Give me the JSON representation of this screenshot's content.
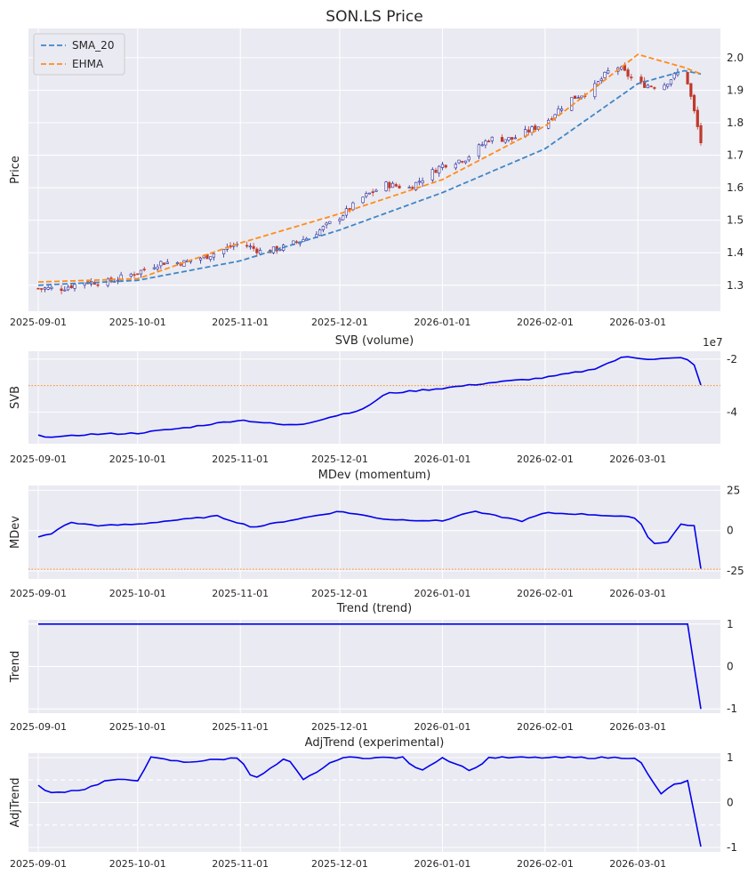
{
  "figure_title": "SON.LS Price",
  "colors": {
    "sma": "#3f86c6",
    "ehma": "#ff8c1a",
    "indicator": "#0000ee",
    "threshold": "#ff8c1a",
    "candle_up": "#2a2a9a",
    "candle_down": "#c0392b"
  },
  "x_tick_labels": [
    "2025-09-01",
    "2025-10-01",
    "2025-11-01",
    "2025-12-01",
    "2026-01-01",
    "2026-02-01",
    "2026-03-01"
  ],
  "chart_data": [
    {
      "type": "candlestick",
      "title": "SON.LS Price",
      "ylabel": "Price",
      "ylim": [
        1.22,
        2.09
      ],
      "yticks": [
        "1.3",
        "1.4",
        "1.5",
        "1.6",
        "1.7",
        "1.8",
        "1.9",
        "2.0"
      ],
      "legend": [
        "SMA_20",
        "EHMA"
      ],
      "x_range": [
        "2025-09-01",
        "2026-03-20"
      ],
      "note": "Daily candlesticks with SMA_20 (blue dashed) and EHMA (orange dashed) overlays",
      "close_anchors": [
        [
          "2025-09-01",
          1.29
        ],
        [
          "2025-09-08",
          1.29
        ],
        [
          "2025-09-15",
          1.31
        ],
        [
          "2025-09-22",
          1.31
        ],
        [
          "2025-10-01",
          1.34
        ],
        [
          "2025-10-08",
          1.37
        ],
        [
          "2025-10-15",
          1.37
        ],
        [
          "2025-10-22",
          1.39
        ],
        [
          "2025-11-01",
          1.43
        ],
        [
          "2025-11-08",
          1.4
        ],
        [
          "2025-11-15",
          1.42
        ],
        [
          "2025-11-22",
          1.45
        ],
        [
          "2025-12-01",
          1.51
        ],
        [
          "2025-12-08",
          1.57
        ],
        [
          "2025-12-15",
          1.61
        ],
        [
          "2025-12-22",
          1.6
        ],
        [
          "2026-01-01",
          1.67
        ],
        [
          "2026-01-08",
          1.69
        ],
        [
          "2026-01-15",
          1.75
        ],
        [
          "2026-01-22",
          1.75
        ],
        [
          "2026-02-01",
          1.8
        ],
        [
          "2026-02-08",
          1.87
        ],
        [
          "2026-02-15",
          1.9
        ],
        [
          "2026-02-22",
          1.98
        ],
        [
          "2026-03-01",
          1.92
        ],
        [
          "2026-03-08",
          1.91
        ],
        [
          "2026-03-15",
          1.97
        ],
        [
          "2026-03-20",
          1.74
        ]
      ],
      "sma_20_anchors": [
        [
          "2025-09-01",
          1.3
        ],
        [
          "2025-10-01",
          1.315
        ],
        [
          "2025-11-01",
          1.375
        ],
        [
          "2025-12-01",
          1.47
        ],
        [
          "2026-01-01",
          1.585
        ],
        [
          "2026-02-01",
          1.72
        ],
        [
          "2026-03-01",
          1.92
        ],
        [
          "2026-03-15",
          1.96
        ],
        [
          "2026-03-20",
          1.95
        ]
      ],
      "ehma_anchors": [
        [
          "2025-09-01",
          1.31
        ],
        [
          "2025-10-01",
          1.32
        ],
        [
          "2025-11-01",
          1.43
        ],
        [
          "2025-12-01",
          1.52
        ],
        [
          "2026-01-01",
          1.625
        ],
        [
          "2026-02-01",
          1.79
        ],
        [
          "2026-03-01",
          2.01
        ],
        [
          "2026-03-15",
          1.97
        ],
        [
          "2026-03-20",
          1.95
        ]
      ]
    },
    {
      "type": "line",
      "title": "SVB (volume)",
      "ylabel": "SVB",
      "offset_label": "1e7",
      "ylim": [
        -5.2,
        -1.7
      ],
      "yticks": [
        "-2",
        "-4"
      ],
      "threshold": -3.0,
      "anchors": [
        [
          "2025-09-01",
          -4.9
        ],
        [
          "2025-09-08",
          -4.95
        ],
        [
          "2025-09-15",
          -4.85
        ],
        [
          "2025-10-01",
          -4.8
        ],
        [
          "2025-10-15",
          -4.6
        ],
        [
          "2025-11-01",
          -4.3
        ],
        [
          "2025-11-15",
          -4.5
        ],
        [
          "2025-11-20",
          -4.45
        ],
        [
          "2025-12-01",
          -4.1
        ],
        [
          "2025-12-08",
          -3.9
        ],
        [
          "2025-12-15",
          -3.3
        ],
        [
          "2026-01-01",
          -3.1
        ],
        [
          "2026-01-15",
          -2.9
        ],
        [
          "2026-02-01",
          -2.7
        ],
        [
          "2026-02-15",
          -2.4
        ],
        [
          "2026-02-25",
          -1.9
        ],
        [
          "2026-03-05",
          -2.0
        ],
        [
          "2026-03-15",
          -1.95
        ],
        [
          "2026-03-18",
          -2.2
        ],
        [
          "2026-03-20",
          -3.0
        ]
      ]
    },
    {
      "type": "line",
      "title": "MDev (momentum)",
      "ylabel": "MDev",
      "ylim": [
        -30,
        28
      ],
      "yticks": [
        "25",
        "0",
        "-25"
      ],
      "threshold": -24,
      "anchors": [
        [
          "2025-09-01",
          -4
        ],
        [
          "2025-09-05",
          -2
        ],
        [
          "2025-09-10",
          5
        ],
        [
          "2025-09-20",
          3
        ],
        [
          "2025-10-01",
          4
        ],
        [
          "2025-10-10",
          6
        ],
        [
          "2025-10-25",
          9
        ],
        [
          "2025-11-05",
          2
        ],
        [
          "2025-11-15",
          6
        ],
        [
          "2025-12-01",
          12
        ],
        [
          "2025-12-15",
          7
        ],
        [
          "2026-01-01",
          6
        ],
        [
          "2026-01-10",
          12
        ],
        [
          "2026-01-25",
          6
        ],
        [
          "2026-02-01",
          11
        ],
        [
          "2026-02-15",
          10
        ],
        [
          "2026-03-01",
          8
        ],
        [
          "2026-03-05",
          -8
        ],
        [
          "2026-03-10",
          -7
        ],
        [
          "2026-03-14",
          4
        ],
        [
          "2026-03-18",
          3
        ],
        [
          "2026-03-20",
          -24
        ]
      ]
    },
    {
      "type": "line",
      "title": "Trend (trend)",
      "ylabel": "Trend",
      "ylim": [
        -1.1,
        1.1
      ],
      "yticks": [
        "1",
        "0",
        "-1"
      ],
      "anchors": [
        [
          "2025-09-01",
          1
        ],
        [
          "2026-03-17",
          1
        ],
        [
          "2026-03-19",
          -1
        ],
        [
          "2026-03-20",
          -1
        ]
      ]
    },
    {
      "type": "line",
      "title": "AdjTrend (experimental)",
      "ylabel": "AdjTrend",
      "ylim": [
        -1.1,
        1.1
      ],
      "yticks": [
        "1",
        "0",
        "-1"
      ],
      "dashed_levels": [
        0.5,
        -0.5
      ],
      "anchors": [
        [
          "2025-09-01",
          0.4
        ],
        [
          "2025-09-04",
          0.2
        ],
        [
          "2025-09-15",
          0.3
        ],
        [
          "2025-09-22",
          0.5
        ],
        [
          "2025-10-01",
          0.5
        ],
        [
          "2025-10-05",
          1
        ],
        [
          "2025-10-15",
          0.9
        ],
        [
          "2025-11-01",
          1
        ],
        [
          "2025-11-05",
          0.5
        ],
        [
          "2025-11-15",
          1
        ],
        [
          "2025-11-20",
          0.5
        ],
        [
          "2025-12-01",
          1
        ],
        [
          "2025-12-20",
          1
        ],
        [
          "2025-12-25",
          0.7
        ],
        [
          "2026-01-01",
          1
        ],
        [
          "2026-01-10",
          0.7
        ],
        [
          "2026-01-15",
          1
        ],
        [
          "2026-02-20",
          1
        ],
        [
          "2026-03-01",
          1
        ],
        [
          "2026-03-05",
          0.5
        ],
        [
          "2026-03-08",
          0.2
        ],
        [
          "2026-03-12",
          0.4
        ],
        [
          "2026-03-17",
          0.5
        ],
        [
          "2026-03-19",
          -1
        ],
        [
          "2026-03-20",
          -1
        ]
      ]
    }
  ]
}
